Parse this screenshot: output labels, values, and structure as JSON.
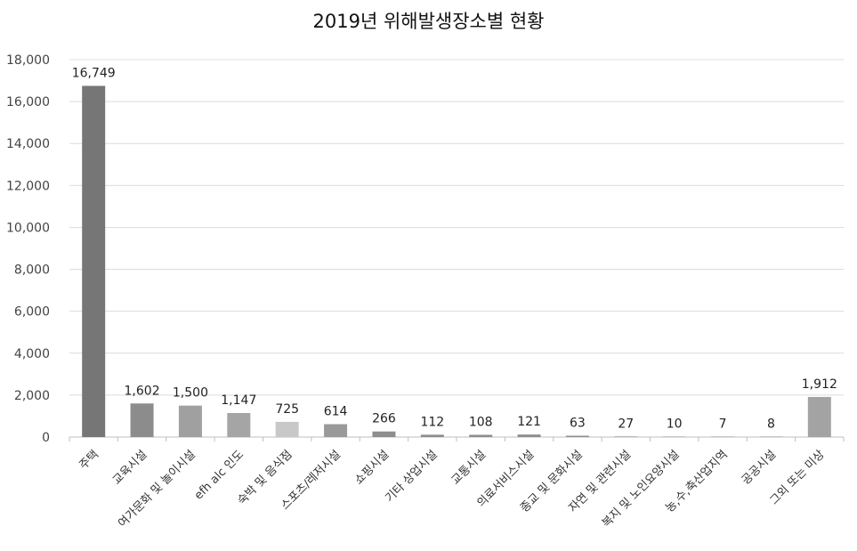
{
  "chart_data": {
    "type": "bar",
    "title": "2019년 위해발생장소별 현황",
    "xlabel": "",
    "ylabel": "",
    "ylim": [
      0,
      18000
    ],
    "yticks": [
      0,
      2000,
      4000,
      6000,
      8000,
      10000,
      12000,
      14000,
      16000,
      18000
    ],
    "ytick_labels": [
      "0",
      "2,000",
      "4,000",
      "6,000",
      "8,000",
      "10,000",
      "12,000",
      "14,000",
      "16,000",
      "18,000"
    ],
    "grid": true,
    "legend": "none",
    "categories": [
      "주택",
      "교육시설",
      "여가문화 및 놀이시설",
      "efh alc 인도",
      "숙박 및 음식점",
      "스포츠/레저시설",
      "쇼핑시설",
      "기타 상업시설",
      "교통시설",
      "의료서비스시설",
      "종교 및 문화시설",
      "자연 및 관련시설",
      "복지 및 노인요양시설",
      "농,수,축산업지역",
      "공공시설",
      "그외 또는 미상"
    ],
    "values": [
      16749,
      1602,
      1500,
      1147,
      725,
      614,
      266,
      112,
      108,
      121,
      63,
      27,
      10,
      7,
      8,
      1912
    ],
    "value_labels": [
      "16,749",
      "1,602",
      "1,500",
      "1,147",
      "725",
      "614",
      "266",
      "112",
      "108",
      "121",
      "63",
      "27",
      "10",
      "7",
      "8",
      "1,912"
    ],
    "colors": [
      "#767676",
      "#8c8c8c",
      "#a0a0a0",
      "#a5a5a5",
      "#c8c8c8",
      "#9a9a9a",
      "#8e8e8e",
      "#8e8e8e",
      "#8e8e8e",
      "#8e8e8e",
      "#8e8e8e",
      "#8e8e8e",
      "#8e8e8e",
      "#8e8e8e",
      "#8e8e8e",
      "#a3a3a3"
    ]
  }
}
